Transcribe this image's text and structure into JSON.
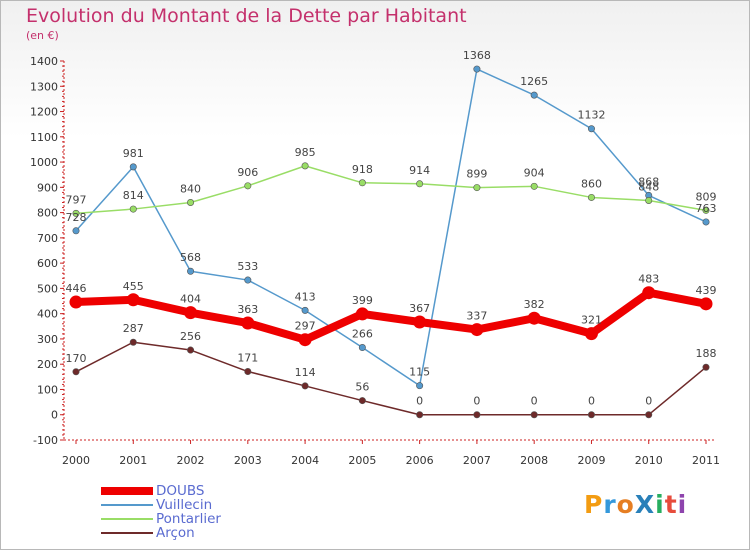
{
  "title": "Evolution du Montant de la Dette par Habitant",
  "unit_label": "(en €)",
  "logo_text": "ProXiti",
  "chart_data": {
    "type": "line",
    "title": "Evolution du Montant de la Dette par Habitant",
    "subtitle": "(en €)",
    "categories": [
      "2000",
      "2001",
      "2002",
      "2003",
      "2004",
      "2005",
      "2006",
      "2007",
      "2008",
      "2009",
      "2010",
      "2011"
    ],
    "ylim": [
      -100,
      1400
    ],
    "yticks": [
      -100,
      0,
      100,
      200,
      300,
      400,
      500,
      600,
      700,
      800,
      900,
      1000,
      1100,
      1200,
      1300,
      1400
    ],
    "grid": false,
    "legend_position": "bottom-left",
    "series": [
      {
        "name": "DOUBS",
        "color": "#ee0000",
        "values": [
          446,
          455,
          404,
          363,
          297,
          399,
          367,
          337,
          382,
          321,
          483,
          439
        ]
      },
      {
        "name": "Vuillecin",
        "color": "#5599cc",
        "values": [
          728,
          981,
          568,
          533,
          413,
          266,
          115,
          1368,
          1265,
          1132,
          868,
          763
        ]
      },
      {
        "name": "Pontarlier",
        "color": "#99dd66",
        "values": [
          797,
          814,
          840,
          906,
          985,
          918,
          914,
          899,
          904,
          860,
          848,
          809
        ]
      },
      {
        "name": "Arçon",
        "color": "#6e2a2a",
        "values": [
          170,
          287,
          256,
          171,
          114,
          56,
          0,
          0,
          0,
          0,
          0,
          188
        ]
      }
    ]
  }
}
